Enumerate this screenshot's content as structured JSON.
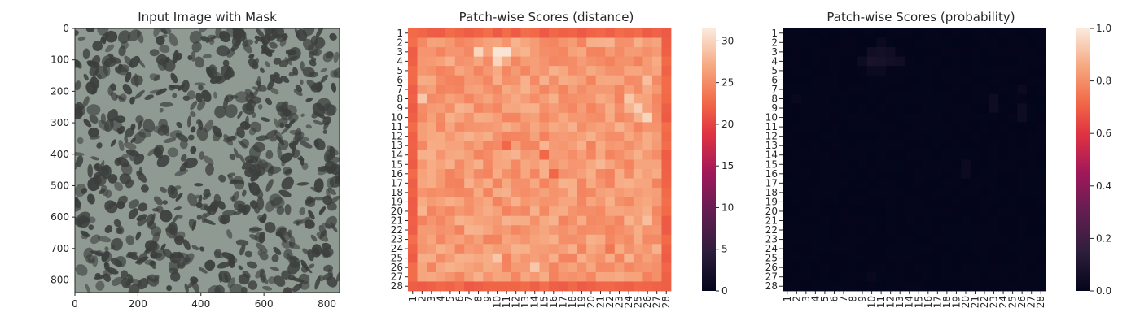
{
  "chart_data": [
    {
      "type": "image",
      "title": "Input Image with Mask",
      "xlim": [
        0,
        840
      ],
      "ylim": [
        840,
        0
      ],
      "x_ticks": [
        "0",
        "200",
        "400",
        "600",
        "800"
      ],
      "y_ticks": [
        "0",
        "100",
        "200",
        "300",
        "400",
        "500",
        "600",
        "700",
        "800"
      ],
      "colors": {
        "background": "#8f9a93",
        "spots": "#3b3e3c"
      }
    },
    {
      "type": "heatmap",
      "title": "Patch-wise Scores (distance)",
      "rows": 28,
      "cols": 28,
      "x_categories": [
        "1",
        "2",
        "3",
        "4",
        "5",
        "6",
        "7",
        "8",
        "9",
        "10",
        "11",
        "12",
        "13",
        "14",
        "15",
        "16",
        "17",
        "18",
        "19",
        "20",
        "21",
        "22",
        "23",
        "24",
        "25",
        "26",
        "27",
        "28"
      ],
      "y_categories": [
        "1",
        "2",
        "3",
        "4",
        "5",
        "6",
        "7",
        "8",
        "9",
        "10",
        "11",
        "12",
        "13",
        "14",
        "15",
        "16",
        "17",
        "18",
        "19",
        "20",
        "21",
        "22",
        "23",
        "24",
        "25",
        "26",
        "27",
        "28"
      ],
      "colorbar_ticks": [
        "0",
        "5",
        "10",
        "15",
        "20",
        "25",
        "30"
      ],
      "vmin": 0,
      "vmax": 31.5,
      "border_value": 21.5,
      "interior_value": 26,
      "hotspots": [
        {
          "row": 3,
          "col": 8,
          "value": 30
        },
        {
          "row": 3,
          "col": 10,
          "value": 31
        },
        {
          "row": 3,
          "col": 11,
          "value": 31
        },
        {
          "row": 4,
          "col": 10,
          "value": 30
        },
        {
          "row": 8,
          "col": 2,
          "value": 29
        },
        {
          "row": 8,
          "col": 24,
          "value": 29
        },
        {
          "row": 9,
          "col": 25,
          "value": 29.5
        },
        {
          "row": 10,
          "col": 26,
          "value": 30
        },
        {
          "row": 6,
          "col": 26,
          "value": 28.5
        },
        {
          "row": 13,
          "col": 11,
          "value": 22.5
        },
        {
          "row": 14,
          "col": 15,
          "value": 22.5
        },
        {
          "row": 16,
          "col": 16,
          "value": 22.5
        },
        {
          "row": 15,
          "col": 21,
          "value": 28
        },
        {
          "row": 25,
          "col": 10,
          "value": 29
        },
        {
          "row": 26,
          "col": 14,
          "value": 29
        },
        {
          "row": 21,
          "col": 26,
          "value": 28.5
        },
        {
          "row": 24,
          "col": 22,
          "value": 23.5
        }
      ]
    },
    {
      "type": "heatmap",
      "title": "Patch-wise Scores (probability)",
      "rows": 28,
      "cols": 28,
      "x_categories": [
        "1",
        "2",
        "3",
        "4",
        "5",
        "6",
        "7",
        "8",
        "9",
        "10",
        "11",
        "12",
        "13",
        "14",
        "15",
        "16",
        "17",
        "18",
        "19",
        "20",
        "21",
        "22",
        "23",
        "24",
        "25",
        "26",
        "27",
        "28"
      ],
      "y_categories": [
        "1",
        "2",
        "3",
        "4",
        "5",
        "6",
        "7",
        "8",
        "9",
        "10",
        "11",
        "12",
        "13",
        "14",
        "15",
        "16",
        "17",
        "18",
        "19",
        "20",
        "21",
        "22",
        "23",
        "24",
        "25",
        "26",
        "27",
        "28"
      ],
      "colorbar_ticks": [
        "0.0",
        "0.2",
        "0.4",
        "0.6",
        "0.8",
        "1.0"
      ],
      "vmin": 0,
      "vmax": 1,
      "base_value": 0,
      "hotspots": [
        {
          "row": 3,
          "col": 10,
          "value": 0.05
        },
        {
          "row": 3,
          "col": 11,
          "value": 0.06
        },
        {
          "row": 3,
          "col": 12,
          "value": 0.05
        },
        {
          "row": 4,
          "col": 9,
          "value": 0.04
        },
        {
          "row": 4,
          "col": 10,
          "value": 0.08
        },
        {
          "row": 4,
          "col": 11,
          "value": 0.07
        },
        {
          "row": 4,
          "col": 12,
          "value": 0.06
        },
        {
          "row": 4,
          "col": 13,
          "value": 0.05
        },
        {
          "row": 5,
          "col": 10,
          "value": 0.03
        },
        {
          "row": 5,
          "col": 11,
          "value": 0.03
        },
        {
          "row": 2,
          "col": 11,
          "value": 0.03
        },
        {
          "row": 8,
          "col": 23,
          "value": 0.04
        },
        {
          "row": 9,
          "col": 23,
          "value": 0.04
        },
        {
          "row": 9,
          "col": 26,
          "value": 0.04
        },
        {
          "row": 10,
          "col": 26,
          "value": 0.04
        },
        {
          "row": 7,
          "col": 26,
          "value": 0.03
        },
        {
          "row": 15,
          "col": 20,
          "value": 0.03
        },
        {
          "row": 16,
          "col": 20,
          "value": 0.03
        },
        {
          "row": 8,
          "col": 2,
          "value": 0.02
        },
        {
          "row": 27,
          "col": 10,
          "value": 0.02
        }
      ]
    }
  ]
}
